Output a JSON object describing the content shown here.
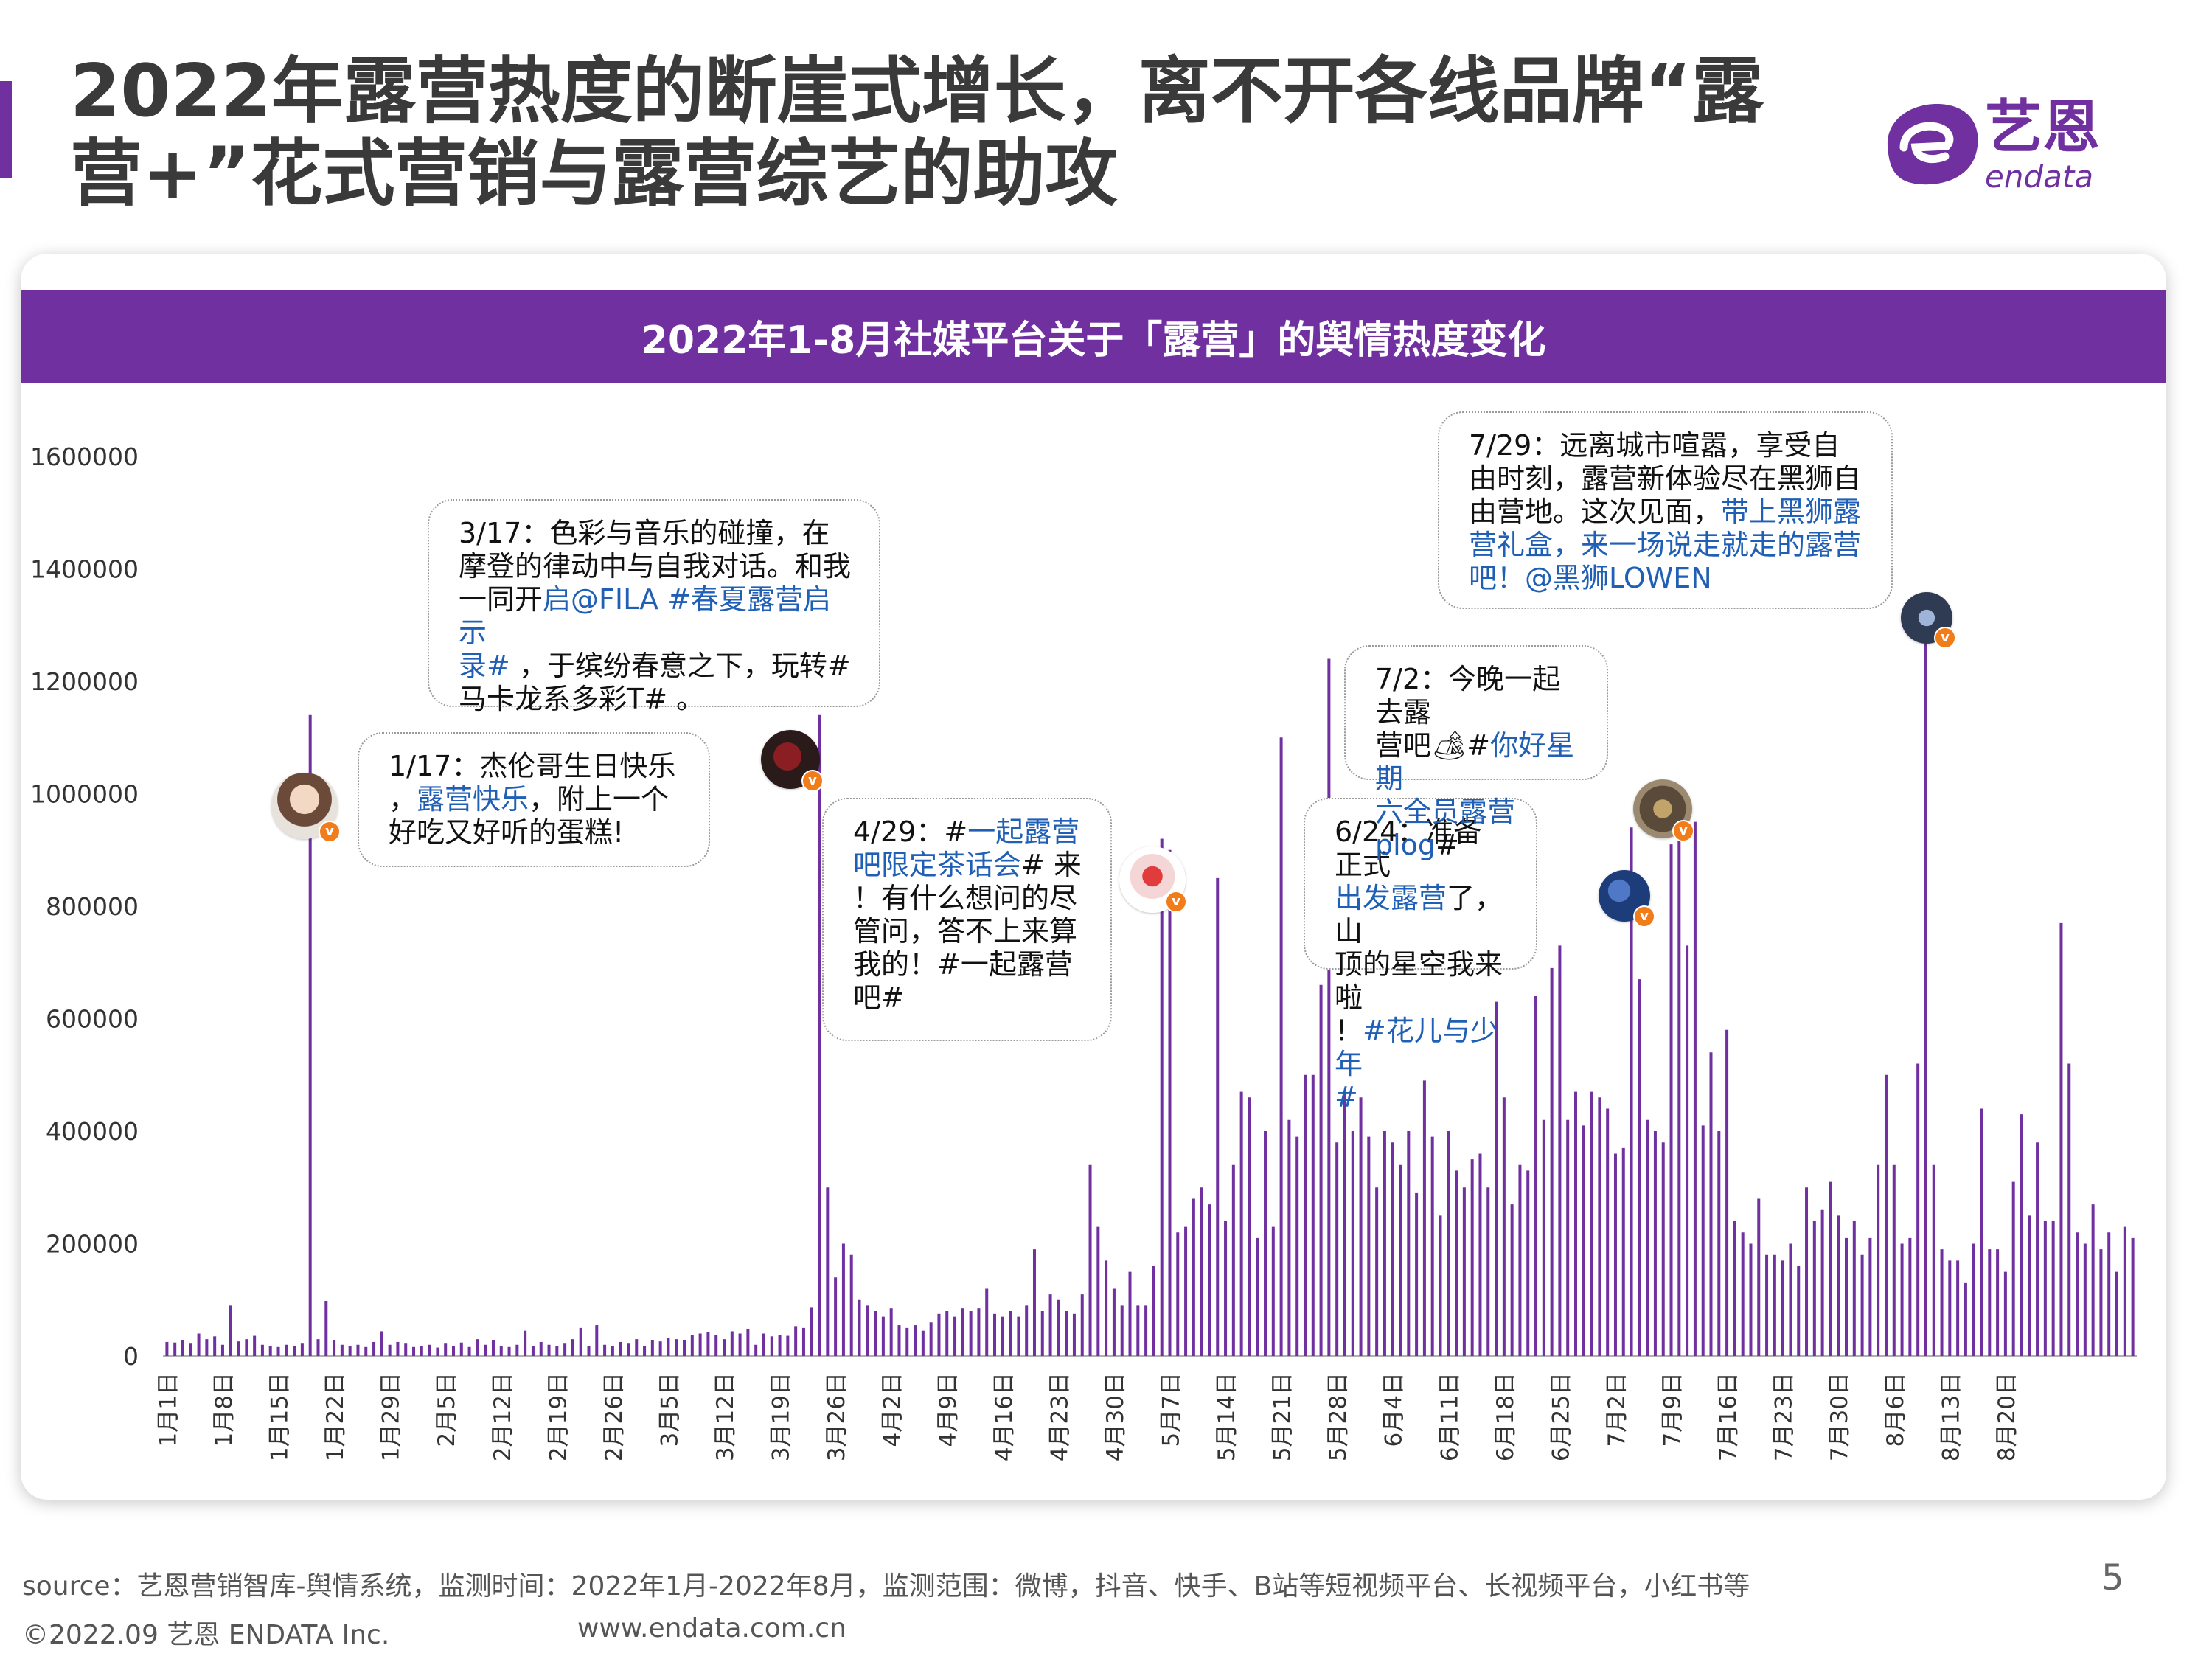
{
  "page": {
    "title_line1": "2022年露营热度的断崖式增长，离不开各线品牌“露",
    "title_line2": "营+”花式营销与露营综艺的助攻",
    "page_number": "5"
  },
  "logo": {
    "cn": "艺恩",
    "en": "endata",
    "color": "#7030a0"
  },
  "card": {
    "header": "2022年1-8月社媒平台关于「露营」的舆情热度变化"
  },
  "colors": {
    "accent": "#7030a0",
    "highlight": "#1f5fb5",
    "badge": "#f07d1a"
  },
  "chart_data": {
    "type": "bar",
    "start_date": "2022-01-01",
    "x_tick_labels": [
      "1月1日",
      "1月8日",
      "1月15日",
      "1月22日",
      "1月29日",
      "2月5日",
      "2月12日",
      "2月19日",
      "2月26日",
      "3月5日",
      "3月12日",
      "3月19日",
      "3月26日",
      "4月2日",
      "4月9日",
      "4月16日",
      "4月23日",
      "4月30日",
      "5月7日",
      "5月14日",
      "5月21日",
      "5月28日",
      "6月4日",
      "6月11日",
      "6月18日",
      "6月25日",
      "7月2日",
      "7月9日",
      "7月16日",
      "7月23日",
      "7月30日",
      "8月6日",
      "8月13日",
      "8月20日"
    ],
    "y_ticks": [
      0,
      200000,
      400000,
      600000,
      800000,
      1000000,
      1200000,
      1400000,
      1600000
    ],
    "ylim": [
      0,
      1600000
    ],
    "grid": false,
    "bar_color": "#7030a0",
    "values": [
      25000,
      24000,
      28000,
      22000,
      40000,
      30000,
      35000,
      20000,
      90000,
      26000,
      30000,
      36000,
      20000,
      18000,
      16000,
      20000,
      18000,
      22000,
      1140000,
      30000,
      98000,
      28000,
      20000,
      18000,
      20000,
      16000,
      25000,
      44000,
      20000,
      25000,
      22000,
      16000,
      18000,
      20000,
      15000,
      22000,
      18000,
      24000,
      16000,
      30000,
      20000,
      28000,
      18000,
      16000,
      20000,
      45000,
      18000,
      25000,
      20000,
      18000,
      22000,
      30000,
      50000,
      18000,
      55000,
      20000,
      18000,
      25000,
      22000,
      30000,
      18000,
      28000,
      26000,
      32000,
      30000,
      28000,
      38000,
      40000,
      42000,
      38000,
      30000,
      44000,
      40000,
      48000,
      20000,
      40000,
      35000,
      38000,
      36000,
      52000,
      50000,
      86000,
      1140000,
      300000,
      140000,
      200000,
      180000,
      100000,
      90000,
      80000,
      70000,
      85000,
      55000,
      50000,
      55000,
      45000,
      60000,
      75000,
      80000,
      70000,
      85000,
      80000,
      85000,
      120000,
      75000,
      70000,
      80000,
      70000,
      90000,
      190000,
      80000,
      110000,
      100000,
      80000,
      75000,
      110000,
      340000,
      230000,
      170000,
      120000,
      90000,
      150000,
      90000,
      90000,
      160000,
      920000,
      900000,
      220000,
      230000,
      280000,
      300000,
      270000,
      850000,
      240000,
      340000,
      470000,
      460000,
      210000,
      400000,
      230000,
      1100000,
      420000,
      390000,
      500000,
      500000,
      660000,
      1240000,
      380000,
      470000,
      400000,
      460000,
      390000,
      300000,
      400000,
      380000,
      340000,
      400000,
      290000,
      490000,
      390000,
      250000,
      400000,
      330000,
      300000,
      350000,
      360000,
      300000,
      630000,
      460000,
      270000,
      340000,
      330000,
      640000,
      420000,
      690000,
      730000,
      420000,
      470000,
      410000,
      470000,
      460000,
      440000,
      360000,
      370000,
      940000,
      670000,
      420000,
      400000,
      380000,
      910000,
      920000,
      730000,
      950000,
      410000,
      540000,
      400000,
      580000,
      240000,
      220000,
      200000,
      280000,
      180000,
      180000,
      170000,
      200000,
      160000,
      300000,
      240000,
      260000,
      310000,
      250000,
      210000,
      240000,
      180000,
      210000,
      340000,
      500000,
      340000,
      200000,
      210000,
      520000,
      1270000,
      340000,
      190000,
      170000,
      170000,
      130000,
      200000,
      440000,
      190000,
      190000,
      150000,
      310000,
      430000,
      250000,
      380000,
      240000,
      240000,
      770000,
      520000,
      220000,
      200000,
      270000,
      190000,
      220000,
      150000,
      230000,
      210000
    ]
  },
  "annotations": [
    {
      "date": "1/17",
      "parts": [
        {
          "t": "1/17：杰伦哥生日快乐\n，",
          "c": "plain"
        },
        {
          "t": "露营快乐",
          "c": "hl"
        },
        {
          "t": "，附上一个\n好吃又好听的蛋糕!",
          "c": "plain"
        }
      ]
    },
    {
      "date": "3/17",
      "parts": [
        {
          "t": "3/17：色彩与音乐的碰撞，在\n摩登的律动中与自我对话。和我\n一同开",
          "c": "plain"
        },
        {
          "t": "启@FILA #春夏露营启示\n录#",
          "c": "hl"
        },
        {
          "t": " ，于缤纷春意之下，玩转#\n马卡龙系多彩T# 。",
          "c": "plain"
        }
      ]
    },
    {
      "date": "4/29",
      "parts": [
        {
          "t": "4/29：#",
          "c": "plain"
        },
        {
          "t": "一起露营\n吧限定茶话会",
          "c": "hl"
        },
        {
          "t": "# 来\n！有什么想问的尽\n管问，答不上来算\n我的！#一起露营\n吧#",
          "c": "plain"
        }
      ]
    },
    {
      "date": "6/24",
      "parts": [
        {
          "t": "6/24：准备正式\n",
          "c": "plain"
        },
        {
          "t": "出发露营",
          "c": "hl"
        },
        {
          "t": "了，山\n顶的星空我来啦\n！",
          "c": "plain"
        },
        {
          "t": "#花儿与少年\n#",
          "c": "hl"
        }
      ]
    },
    {
      "date": "7/2",
      "parts": [
        {
          "t": "7/2：今晚一起去露\n营吧🏕#",
          "c": "plain"
        },
        {
          "t": "你好星期\n六全员露营plog",
          "c": "hl"
        },
        {
          "t": "#",
          "c": "plain"
        }
      ]
    },
    {
      "date": "7/29",
      "parts": [
        {
          "t": "7/29：远离城市喧嚣，享受自\n由时刻，露营新体验尽在黑狮自\n由营地。这次见面，",
          "c": "plain"
        },
        {
          "t": "带上黑狮露\n营礼盒，来一场说走就走的露营\n吧！@黑狮LOWEN",
          "c": "hl"
        }
      ]
    }
  ],
  "footer": {
    "source": "source：艺恩营销智库-舆情系统，监测时间：2022年1月-2022年8月，监测范围：微博，抖音、快手、B站等短视频平台、长视频平台，小红书等",
    "copyright": "©2022.09 艺恩 ENDATA Inc.",
    "url": "www.endata.com.cn"
  }
}
